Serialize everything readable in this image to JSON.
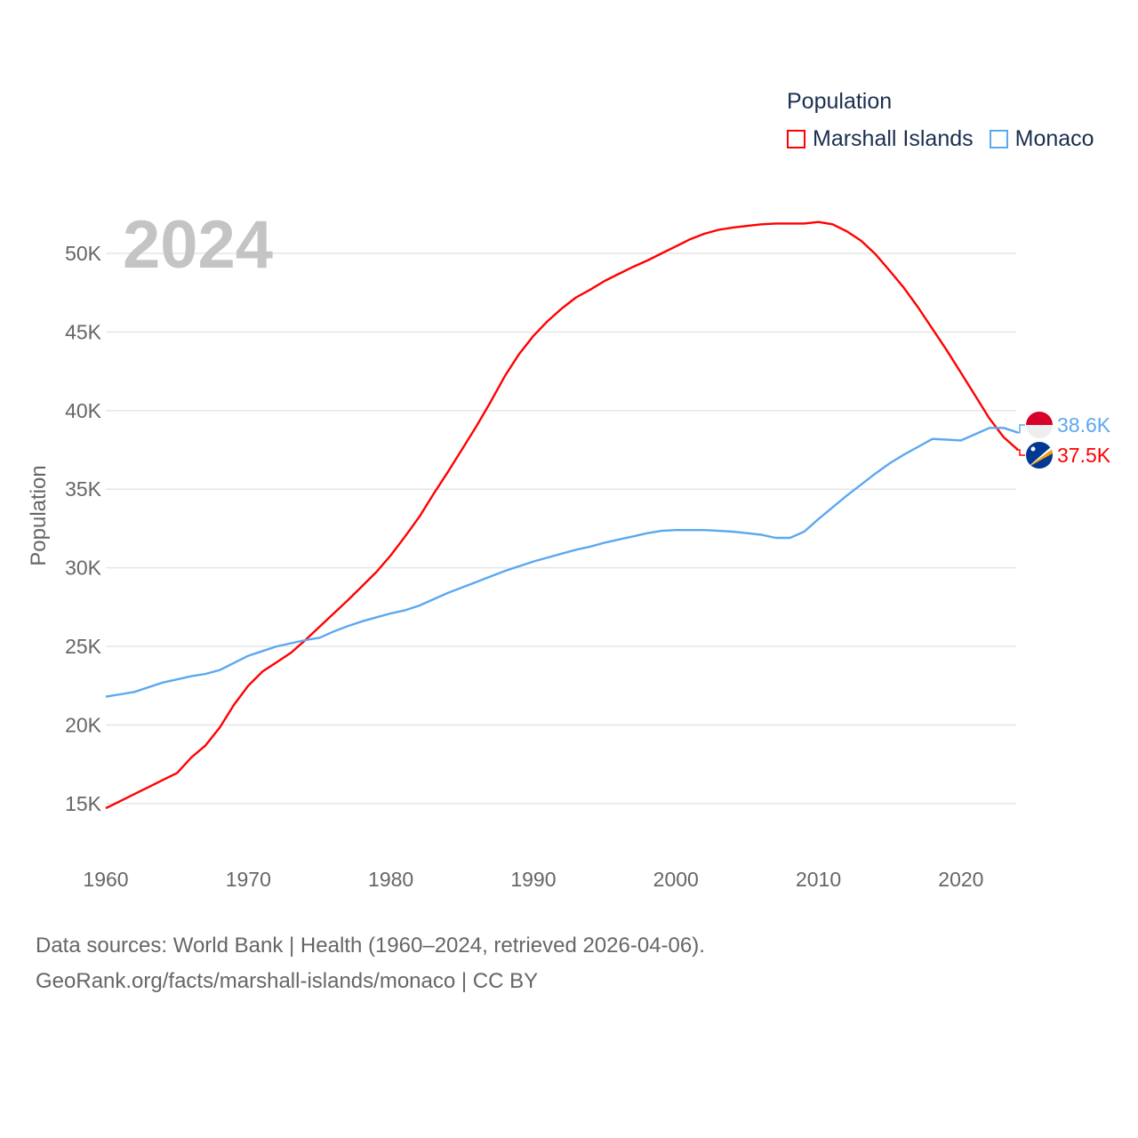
{
  "chart_data": {
    "type": "line",
    "title": "Population",
    "year_label": "2024",
    "xlabel": "",
    "ylabel": "Population",
    "xlim": [
      1960,
      2024
    ],
    "ylim": [
      13000,
      53000
    ],
    "x_ticks": [
      "1960",
      "1970",
      "1980",
      "1990",
      "2000",
      "2010",
      "2020"
    ],
    "y_ticks": [
      {
        "value": 15000,
        "label": "15K"
      },
      {
        "value": 20000,
        "label": "20K"
      },
      {
        "value": 25000,
        "label": "25K"
      },
      {
        "value": 30000,
        "label": "30K"
      },
      {
        "value": 35000,
        "label": "35K"
      },
      {
        "value": 40000,
        "label": "40K"
      },
      {
        "value": 45000,
        "label": "45K"
      },
      {
        "value": 50000,
        "label": "50K"
      }
    ],
    "grid": true,
    "legend_placement": "top-right",
    "x": [
      1960,
      1961,
      1962,
      1963,
      1964,
      1965,
      1966,
      1967,
      1968,
      1969,
      1970,
      1971,
      1972,
      1973,
      1974,
      1975,
      1976,
      1977,
      1978,
      1979,
      1980,
      1981,
      1982,
      1983,
      1984,
      1985,
      1986,
      1987,
      1988,
      1989,
      1990,
      1991,
      1992,
      1993,
      1994,
      1995,
      1996,
      1997,
      1998,
      1999,
      2000,
      2001,
      2002,
      2003,
      2004,
      2005,
      2006,
      2007,
      2008,
      2009,
      2010,
      2011,
      2012,
      2013,
      2014,
      2015,
      2016,
      2017,
      2018,
      2019,
      2020,
      2021,
      2022,
      2023,
      2024
    ],
    "series": [
      {
        "name": "Marshall Islands",
        "color": "#ff0000",
        "end_label": "37.5K",
        "values": [
          14700,
          15150,
          15600,
          16050,
          16500,
          16950,
          17930,
          18700,
          19850,
          21300,
          22500,
          23400,
          24000,
          24600,
          25400,
          26250,
          27100,
          27950,
          28850,
          29750,
          30800,
          32000,
          33250,
          34700,
          36100,
          37550,
          39000,
          40550,
          42200,
          43600,
          44750,
          45700,
          46500,
          47200,
          47700,
          48250,
          48700,
          49150,
          49550,
          50000,
          50450,
          50900,
          51250,
          51500,
          51650,
          51750,
          51850,
          51900,
          51900,
          51900,
          52000,
          51850,
          51400,
          50800,
          49950,
          48900,
          47800,
          46550,
          45200,
          43850,
          42400,
          40950,
          39500,
          38300,
          37500
        ]
      },
      {
        "name": "Monaco",
        "color": "#5ba8f0",
        "end_label": "38.6K",
        "values": [
          21800,
          21950,
          22100,
          22400,
          22700,
          22900,
          23100,
          23250,
          23500,
          23950,
          24400,
          24700,
          25000,
          25200,
          25400,
          25550,
          25950,
          26300,
          26600,
          26850,
          27100,
          27300,
          27600,
          28000,
          28400,
          28750,
          29100,
          29450,
          29800,
          30100,
          30400,
          30650,
          30900,
          31150,
          31350,
          31600,
          31800,
          32000,
          32200,
          32350,
          32400,
          32400,
          32400,
          32350,
          32300,
          32200,
          32100,
          31900,
          31900,
          32300,
          33100,
          33850,
          34600,
          35300,
          36000,
          36650,
          37200,
          37700,
          38200,
          38150,
          38100,
          38500,
          38900,
          38900,
          38600
        ]
      }
    ]
  },
  "legend": {
    "title": "Population",
    "items": [
      "Marshall Islands",
      "Monaco"
    ]
  },
  "footer": {
    "line1": "Data sources: World Bank | Health (1960–2024, retrieved 2026-04-06).",
    "line2": "GeoRank.org/facts/marshall-islands/monaco | CC BY"
  }
}
